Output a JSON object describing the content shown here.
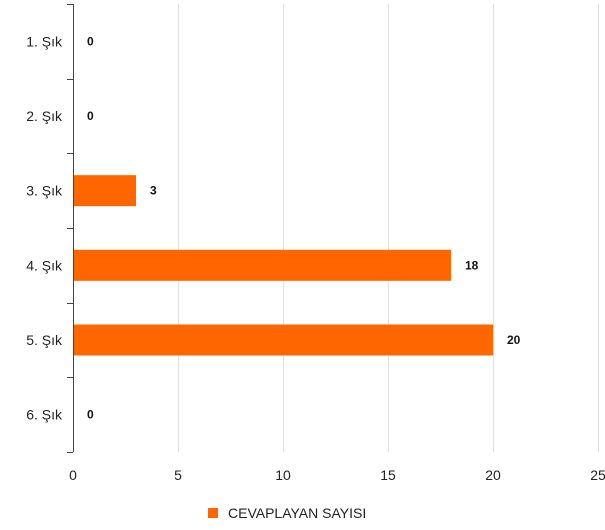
{
  "chart_data": {
    "type": "bar",
    "orientation": "horizontal",
    "categories": [
      "1. Şık",
      "2. Şık",
      "3. Şık",
      "4. Şık",
      "5. Şık",
      "6. Şık"
    ],
    "series": [
      {
        "name": "CEVAPLAYAN SAYISI",
        "values": [
          0,
          0,
          3,
          18,
          20,
          0
        ],
        "color": "#ff6600"
      }
    ],
    "xlim": [
      0,
      25
    ],
    "xticks": [
      0,
      5,
      10,
      15,
      20,
      25
    ],
    "grid": true,
    "legend_position": "bottom-center",
    "data_labels": true
  }
}
